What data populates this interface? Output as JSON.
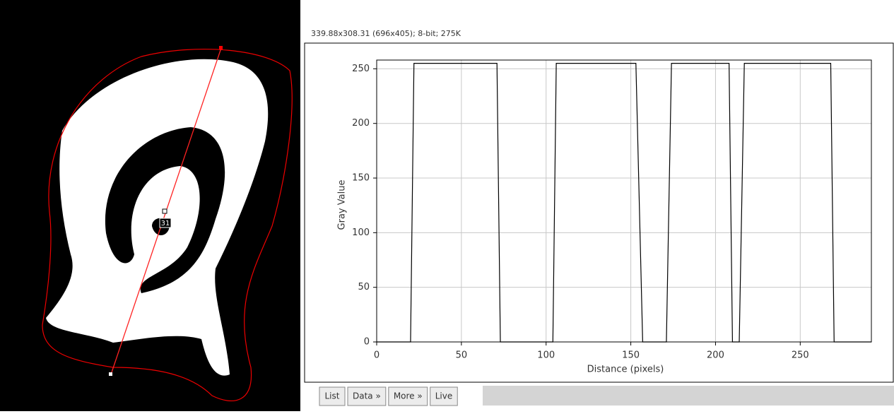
{
  "window": {
    "header": "339.88x308.31    (696x405); 8-bit; 275K",
    "roi_label": "31",
    "buttons": [
      "List",
      "Data »",
      "More »",
      "Live"
    ]
  },
  "chart_data": {
    "type": "line",
    "x_label": "Distance (pixels)",
    "y_label": "Gray Value",
    "x": [
      0,
      20,
      22,
      71,
      73,
      104,
      106,
      153,
      157,
      171,
      174,
      208,
      210,
      214,
      217,
      268,
      270,
      292
    ],
    "values": [
      0,
      0,
      255,
      255,
      0,
      0,
      255,
      255,
      0,
      0,
      255,
      255,
      0,
      0,
      255,
      255,
      0,
      0
    ],
    "color": "#000000",
    "xlim": [
      0,
      292
    ],
    "ylim": [
      0,
      258
    ],
    "xticks": [
      0,
      50,
      100,
      150,
      200,
      250
    ],
    "yticks": [
      0,
      50,
      100,
      150,
      200,
      250
    ],
    "grid": true
  }
}
